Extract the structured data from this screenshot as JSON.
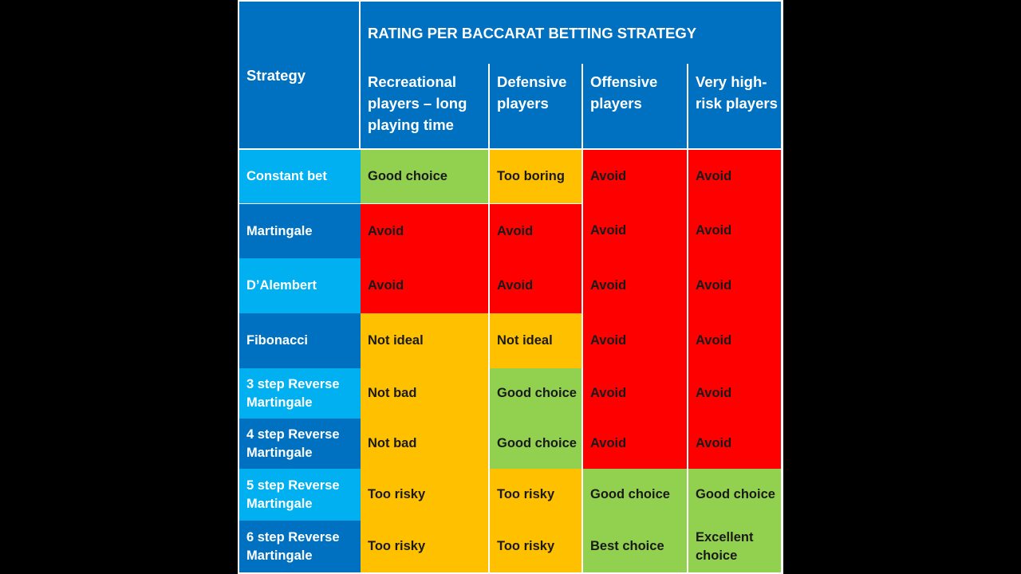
{
  "title": "RATING PER BACCARAT BETTING STRATEGY",
  "strategy_header": "Strategy",
  "columns": [
    "Recreational players – long playing time",
    "Defensive players",
    "Offensive players",
    "Very high-risk players"
  ],
  "rows": [
    {
      "strategy": "Constant bet",
      "ratings": [
        "Good choice",
        "Too boring",
        "Avoid",
        "Avoid"
      ]
    },
    {
      "strategy": "Martingale",
      "ratings": [
        "Avoid",
        "Avoid",
        "Avoid",
        "Avoid"
      ]
    },
    {
      "strategy": "D’Alembert",
      "ratings": [
        "Avoid",
        "Avoid",
        "Avoid",
        "Avoid"
      ]
    },
    {
      "strategy": "Fibonacci",
      "ratings": [
        "Not ideal",
        "Not ideal",
        "Avoid",
        "Avoid"
      ]
    },
    {
      "strategy": "3 step Reverse Martingale",
      "ratings": [
        "Not bad",
        "Good choice",
        "Avoid",
        "Avoid"
      ]
    },
    {
      "strategy": "4 step Reverse Martingale",
      "ratings": [
        "Not bad",
        "Good choice",
        "Avoid",
        "Avoid"
      ]
    },
    {
      "strategy": "5 step Reverse Martingale",
      "ratings": [
        "Too risky",
        "Too risky",
        "Good choice",
        "Good choice"
      ]
    },
    {
      "strategy": "6 step Reverse Martingale",
      "ratings": [
        "Too risky",
        "Too risky",
        "Best choice",
        "Excellent choice"
      ]
    }
  ],
  "colors": {
    "header_blue": "#0070C0",
    "light_blue": "#00B0F0",
    "green": "#92D050",
    "yellow": "#FFC000",
    "red": "#FF0000"
  }
}
